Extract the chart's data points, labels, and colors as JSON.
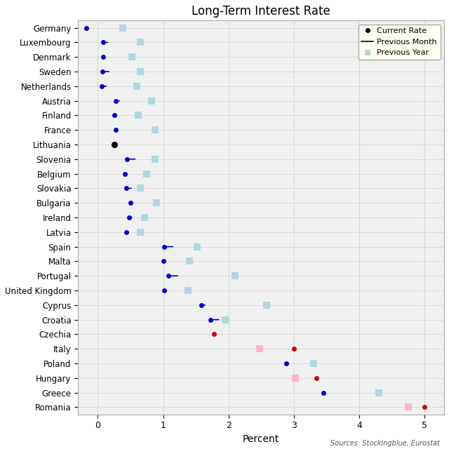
{
  "title": "Long-Term Interest Rate",
  "xlabel": "Percent",
  "source": "Sources: Stockingblue, Eurostat",
  "countries": [
    "Germany",
    "Luxembourg",
    "Denmark",
    "Sweden",
    "Netherlands",
    "Austria",
    "Finland",
    "France",
    "Lithuania",
    "Slovenia",
    "Belgium",
    "Slovakia",
    "Bulgaria",
    "Ireland",
    "Latvia",
    "Spain",
    "Malta",
    "Portugal",
    "United Kingdom",
    "Cyprus",
    "Croatia",
    "Czechia",
    "Italy",
    "Poland",
    "Hungary",
    "Greece",
    "Romania"
  ],
  "current_rate": [
    -0.18,
    0.08,
    0.08,
    0.07,
    0.06,
    0.28,
    0.25,
    0.27,
    0.25,
    0.45,
    0.42,
    0.44,
    0.5,
    0.48,
    0.44,
    1.02,
    1.0,
    1.08,
    1.02,
    1.58,
    1.72,
    1.78,
    3.0,
    2.88,
    3.35,
    3.45,
    5.0
  ],
  "prev_month": [
    -0.18,
    0.18,
    null,
    0.2,
    0.16,
    0.33,
    0.32,
    0.31,
    null,
    0.6,
    0.48,
    0.54,
    null,
    0.52,
    0.5,
    1.18,
    null,
    1.25,
    1.08,
    1.67,
    1.88,
    null,
    null,
    2.92,
    null,
    null,
    null
  ],
  "prev_year": [
    0.38,
    0.65,
    0.52,
    0.65,
    0.6,
    0.82,
    0.62,
    0.88,
    null,
    0.88,
    0.75,
    0.65,
    0.9,
    0.72,
    0.65,
    1.52,
    1.4,
    2.1,
    1.38,
    2.58,
    1.95,
    null,
    2.48,
    3.3,
    3.02,
    4.3,
    null
  ],
  "current_color": [
    "blue",
    "blue",
    "blue",
    "blue",
    "blue",
    "blue",
    "blue",
    "blue",
    "black",
    "blue",
    "blue",
    "blue",
    "blue",
    "blue",
    "blue",
    "blue",
    "blue",
    "blue",
    "blue",
    "blue",
    "blue",
    "red",
    "red",
    "blue",
    "red",
    "blue",
    "red"
  ],
  "prev_year_pink": [
    false,
    false,
    false,
    false,
    false,
    false,
    false,
    false,
    null,
    false,
    false,
    false,
    false,
    false,
    false,
    false,
    false,
    false,
    false,
    false,
    false,
    null,
    true,
    false,
    true,
    false,
    null
  ],
  "romania_prev_year": 4.75,
  "xlim": [
    0,
    5
  ],
  "ylim": [
    -0.5,
    26.5
  ],
  "xticks": [
    0,
    1,
    2,
    3,
    4,
    5
  ],
  "figsize": [
    6.4,
    6.4
  ],
  "dpi": 100,
  "plot_bg": "#f0f0f0",
  "grid_color": "#d0d0d0",
  "legend_bg": "#fffff0"
}
